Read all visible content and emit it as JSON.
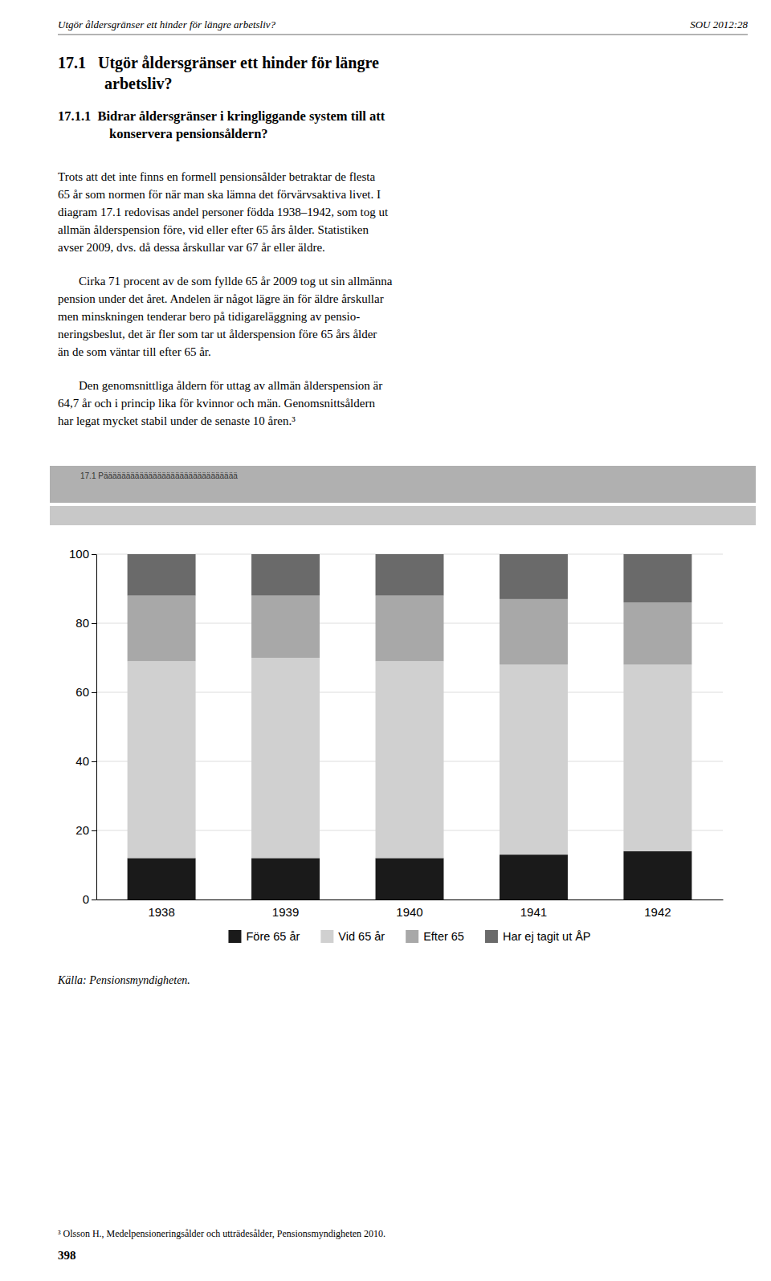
{
  "chart_data": {
    "type": "bar",
    "stacked": true,
    "categories": [
      "1938",
      "1939",
      "1940",
      "1941",
      "1942"
    ],
    "series": [
      {
        "name": "Före 65 år",
        "color": "#1a1a1a",
        "values": [
          12,
          12,
          12,
          13,
          14
        ]
      },
      {
        "name": "Vid 65 år",
        "color": "#d0d0d0",
        "values": [
          57,
          58,
          57,
          55,
          54
        ]
      },
      {
        "name": "Efter 65",
        "color": "#a8a8a8",
        "values": [
          19,
          18,
          19,
          19,
          18
        ]
      },
      {
        "name": "Har ej tagit ut ÅP",
        "color": "#6a6a6a",
        "values": [
          12,
          12,
          12,
          13,
          14
        ]
      }
    ],
    "ylim": [
      0,
      100
    ],
    "yticks": [
      0,
      20,
      40,
      60,
      80,
      100
    ],
    "grid": true,
    "legend": "bottom",
    "annotations": [
      "Källa: Pensionsmyndigheten."
    ]
  },
  "page": {
    "header_left": "Utgör åldersgränser ett hinder för längre arbetsliv?",
    "header_right": "SOU 2012:28",
    "headings": [
      [
        "17.1   Utgör åldersgränser ett hinder för längre",
        "arbetsliv?"
      ],
      [
        "17.1.1  Bidrar åldersgränser i kringliggande system till att",
        "konservera pensionsåldern?"
      ]
    ],
    "paragraphs": [
      [
        "Trots att det inte finns en formell pensionsålder betraktar de flesta",
        "65 år som normen för när man ska lämna det förvärvsaktiva livet. I",
        "diagram 17.1 redovisas andel personer födda 1938–1942, som tog ut",
        "allmän ålderspension före, vid eller efter 65 års ålder. Statistiken",
        "avser 2009, dvs. då dessa årskullar var 67 år eller äldre."
      ],
      [
        "Cirka 71 procent av de som fyllde 65 år 2009 tog ut sin allmänna",
        "pension under det året. Andelen är något lägre än för äldre årskullar",
        "men minskningen tenderar bero på tidigareläggning av pensio-",
        "neringsbeslut, det är fler som tar ut ålderspension före 65 års ålder",
        "än de som väntar till efter 65 år."
      ],
      [
        "Den genomsnittliga åldern för uttag av allmän ålderspension är",
        "64,7 år och i princip lika för kvinnor och män. Genomsnittsåldern",
        "har legat mycket stabil under de senaste 10 åren.³"
      ]
    ],
    "banner": "17.1 Pääääääääääääääääääääääääääääää",
    "footnote": "³ Olsson H., Medelpensioneringsålder och utträdesålder, Pensionsmyndigheten 2010.",
    "page_number": "398"
  }
}
